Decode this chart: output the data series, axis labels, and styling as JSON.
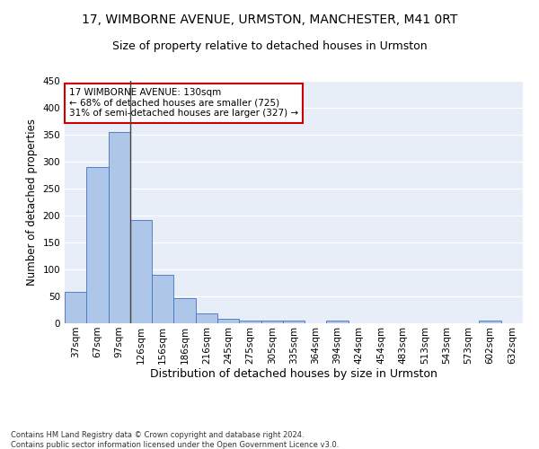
{
  "title1": "17, WIMBORNE AVENUE, URMSTON, MANCHESTER, M41 0RT",
  "title2": "Size of property relative to detached houses in Urmston",
  "xlabel": "Distribution of detached houses by size in Urmston",
  "ylabel": "Number of detached properties",
  "footnote": "Contains HM Land Registry data © Crown copyright and database right 2024.\nContains public sector information licensed under the Open Government Licence v3.0.",
  "categories": [
    "37sqm",
    "67sqm",
    "97sqm",
    "126sqm",
    "156sqm",
    "186sqm",
    "216sqm",
    "245sqm",
    "275sqm",
    "305sqm",
    "335sqm",
    "364sqm",
    "394sqm",
    "424sqm",
    "454sqm",
    "483sqm",
    "513sqm",
    "543sqm",
    "573sqm",
    "602sqm",
    "632sqm"
  ],
  "values": [
    59,
    290,
    355,
    192,
    90,
    46,
    19,
    9,
    5,
    5,
    5,
    0,
    5,
    0,
    0,
    0,
    0,
    0,
    0,
    5,
    0
  ],
  "bar_color": "#aec6e8",
  "bar_edge_color": "#4472c4",
  "annotation_text": "17 WIMBORNE AVENUE: 130sqm\n← 68% of detached houses are smaller (725)\n31% of semi-detached houses are larger (327) →",
  "annotation_box_color": "#ffffff",
  "annotation_box_edge": "#cc0000",
  "property_line_color": "#444444",
  "ylim": [
    0,
    450
  ],
  "background_color": "#e8eef8",
  "grid_color": "#ffffff",
  "title1_fontsize": 10,
  "title2_fontsize": 9,
  "tick_fontsize": 7.5,
  "ylabel_fontsize": 8.5,
  "xlabel_fontsize": 9,
  "footnote_fontsize": 6
}
